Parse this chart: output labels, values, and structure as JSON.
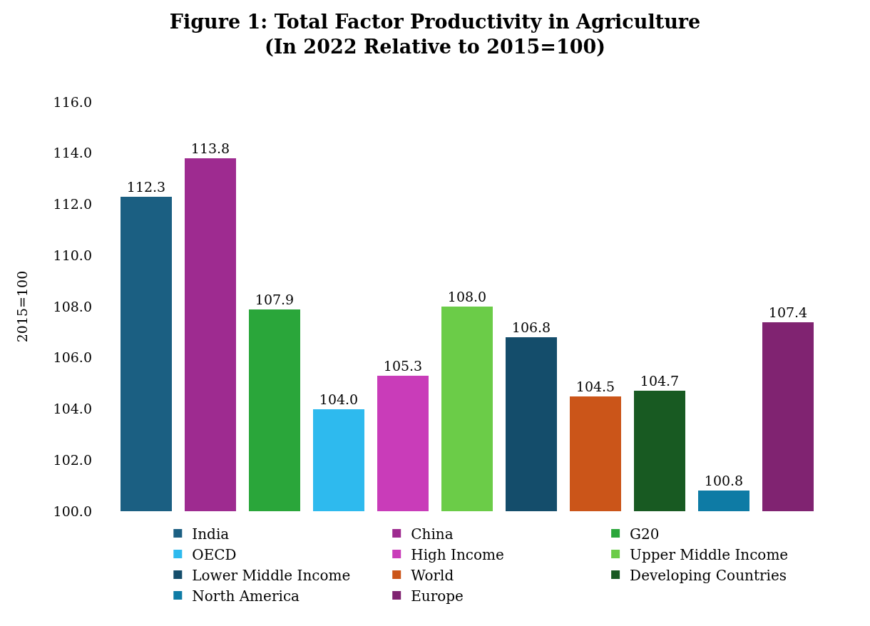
{
  "chart_data": {
    "type": "bar",
    "title": "Figure 1: Total Factor Productivity in Agriculture\n(In 2022 Relative to 2015=100)",
    "ylabel": "2015=100",
    "categories": [
      null,
      null,
      null,
      null,
      null,
      null,
      null,
      null,
      null,
      null,
      null
    ],
    "stacked": true,
    "series": [
      {
        "name": "India",
        "color": "#1b5f82",
        "values": [
          112.3,
          null,
          null,
          null,
          null,
          null,
          null,
          null,
          null,
          null,
          null
        ],
        "value_labels": [
          "112.3",
          null,
          null,
          null,
          null,
          null,
          null,
          null,
          null,
          null,
          null
        ]
      },
      {
        "name": "China",
        "color": "#9e2b90",
        "values": [
          null,
          113.8,
          null,
          null,
          null,
          null,
          null,
          null,
          null,
          null,
          null
        ],
        "value_labels": [
          null,
          "113.8",
          null,
          null,
          null,
          null,
          null,
          null,
          null,
          null,
          null
        ]
      },
      {
        "name": "G20",
        "color": "#2aa63a",
        "values": [
          null,
          null,
          107.9,
          null,
          null,
          null,
          null,
          null,
          null,
          null,
          null
        ],
        "value_labels": [
          null,
          null,
          "107.9",
          null,
          null,
          null,
          null,
          null,
          null,
          null,
          null
        ]
      },
      {
        "name": "OECD",
        "color": "#2ebaee",
        "values": [
          null,
          null,
          null,
          104.0,
          null,
          null,
          null,
          null,
          null,
          null,
          null
        ],
        "value_labels": [
          null,
          null,
          null,
          "104.0",
          null,
          null,
          null,
          null,
          null,
          null,
          null
        ]
      },
      {
        "name": "High Income",
        "color": "#c93cb9",
        "values": [
          null,
          null,
          null,
          null,
          105.3,
          null,
          null,
          null,
          null,
          null,
          null
        ],
        "value_labels": [
          null,
          null,
          null,
          null,
          "105.3",
          null,
          null,
          null,
          null,
          null,
          null
        ]
      },
      {
        "name": "Upper Middle Income",
        "color": "#6bcc48",
        "values": [
          null,
          null,
          null,
          null,
          null,
          108.0,
          null,
          null,
          null,
          null,
          null
        ],
        "value_labels": [
          null,
          null,
          null,
          null,
          null,
          "108.0",
          null,
          null,
          null,
          null,
          null
        ]
      },
      {
        "name": "Lower Middle Income",
        "color": "#144d6b",
        "values": [
          null,
          null,
          null,
          null,
          null,
          null,
          106.8,
          null,
          null,
          null,
          null
        ],
        "value_labels": [
          null,
          null,
          null,
          null,
          null,
          null,
          "106.8",
          null,
          null,
          null,
          null
        ]
      },
      {
        "name": "World",
        "color": "#cb5519",
        "values": [
          null,
          null,
          null,
          null,
          null,
          null,
          null,
          104.5,
          null,
          null,
          null
        ],
        "value_labels": [
          null,
          null,
          null,
          null,
          null,
          null,
          null,
          "104.5",
          null,
          null,
          null
        ]
      },
      {
        "name": "Developing Countries",
        "color": "#185a22",
        "values": [
          null,
          null,
          null,
          null,
          null,
          null,
          null,
          null,
          104.7,
          null,
          null
        ],
        "value_labels": [
          null,
          null,
          null,
          null,
          null,
          null,
          null,
          null,
          "104.7",
          null,
          null
        ]
      },
      {
        "name": "North America",
        "color": "#0e7ba5",
        "values": [
          null,
          null,
          null,
          null,
          null,
          null,
          null,
          null,
          null,
          100.8,
          null
        ],
        "value_labels": [
          null,
          null,
          null,
          null,
          null,
          null,
          null,
          null,
          null,
          "100.8",
          null
        ]
      },
      {
        "name": "Europe",
        "color": "#802371",
        "values": [
          null,
          null,
          null,
          null,
          null,
          null,
          null,
          null,
          null,
          null,
          107.4
        ],
        "value_labels": [
          null,
          null,
          null,
          null,
          null,
          null,
          null,
          null,
          null,
          null,
          "107.4"
        ]
      }
    ],
    "ylim": [
      100,
      116
    ],
    "yticks": [
      {
        "value": 100,
        "label": "100.0"
      },
      {
        "value": 102,
        "label": "102.0"
      },
      {
        "value": 104,
        "label": "104.0"
      },
      {
        "value": 106,
        "label": "106.0"
      },
      {
        "value": 108,
        "label": "108.0"
      },
      {
        "value": 110,
        "label": "110.0"
      },
      {
        "value": 112,
        "label": "112.0"
      },
      {
        "value": 114,
        "label": "114.0"
      },
      {
        "value": 116,
        "label": "116.0"
      }
    ],
    "tick_labels": "y",
    "legend": "bottom",
    "grid": false
  }
}
